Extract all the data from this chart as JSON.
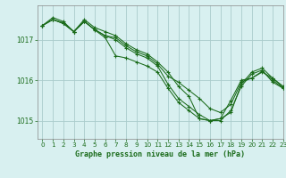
{
  "title": "Graphe pression niveau de la mer (hPa)",
  "background_color": "#d8f0f0",
  "grid_color": "#aacccc",
  "line_color": "#1a6b1a",
  "xlim": [
    -0.5,
    23
  ],
  "ylim": [
    1014.55,
    1017.85
  ],
  "yticks": [
    1015,
    1016,
    1017
  ],
  "xticks": [
    0,
    1,
    2,
    3,
    4,
    5,
    6,
    7,
    8,
    9,
    10,
    11,
    12,
    13,
    14,
    15,
    16,
    17,
    18,
    19,
    20,
    21,
    22,
    23
  ],
  "series": [
    [
      1017.35,
      1017.55,
      1017.45,
      1017.2,
      1017.5,
      1017.3,
      1017.2,
      1017.1,
      1016.9,
      1016.75,
      1016.65,
      1016.45,
      1016.2,
      1015.85,
      1015.6,
      1015.05,
      1015.0,
      1015.0,
      1015.25,
      1015.85,
      1016.15,
      1016.25,
      1015.95,
      1015.8
    ],
    [
      1017.35,
      1017.5,
      1017.4,
      1017.2,
      1017.45,
      1017.25,
      1017.1,
      1017.05,
      1016.85,
      1016.7,
      1016.6,
      1016.4,
      1016.1,
      1015.95,
      1015.75,
      1015.55,
      1015.3,
      1015.2,
      1015.4,
      1015.95,
      1016.05,
      1016.2,
      1016.05,
      1015.85
    ],
    [
      1017.35,
      1017.5,
      1017.4,
      1017.2,
      1017.45,
      1017.25,
      1017.1,
      1017.0,
      1016.8,
      1016.65,
      1016.55,
      1016.35,
      1015.9,
      1015.55,
      1015.35,
      1015.15,
      1015.0,
      1015.05,
      1015.2,
      1015.9,
      1016.2,
      1016.3,
      1016.05,
      1015.82
    ],
    [
      1017.35,
      1017.5,
      1017.42,
      1017.2,
      1017.46,
      1017.24,
      1017.05,
      1016.6,
      1016.55,
      1016.45,
      1016.35,
      1016.2,
      1015.8,
      1015.45,
      1015.25,
      1015.05,
      1015.0,
      1015.05,
      1015.5,
      1016.0,
      1016.05,
      1016.22,
      1016.0,
      1015.8
    ]
  ]
}
